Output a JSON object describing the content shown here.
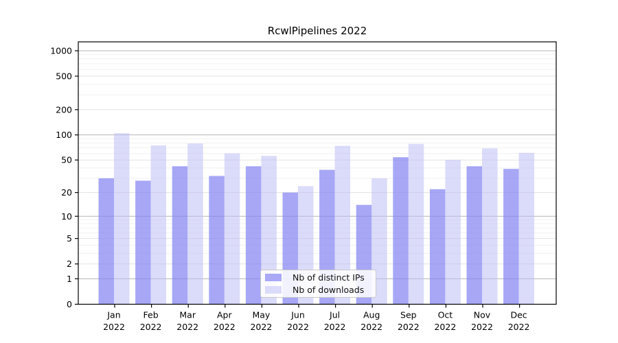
{
  "chart_data": {
    "type": "bar",
    "title": "RcwlPipelines 2022",
    "categories": [
      "Jan",
      "Feb",
      "Mar",
      "Apr",
      "May",
      "Jun",
      "Jul",
      "Aug",
      "Sep",
      "Oct",
      "Nov",
      "Dec"
    ],
    "x_year": "2022",
    "series": [
      {
        "name": "Nb of distinct IPs",
        "values": [
          30,
          28,
          42,
          32,
          42,
          20,
          38,
          14,
          54,
          22,
          42,
          39
        ],
        "color": "#8282f2",
        "opacity": 0.7,
        "legend_color": "#a9a9f7"
      },
      {
        "name": "Nb of downloads",
        "values": [
          105,
          75,
          79,
          60,
          56,
          24,
          74,
          30,
          78,
          50,
          69,
          61
        ],
        "color": "#bebef5",
        "opacity": 0.55,
        "legend_color": "#dbdbfa"
      }
    ],
    "y_ticks": [
      0,
      1,
      2,
      5,
      10,
      20,
      50,
      100,
      200,
      500,
      1000
    ],
    "y_scale": "log1p",
    "ylim": [
      0,
      1280
    ],
    "grid": true,
    "legend_position": "lower center inside plot",
    "colors": {
      "grid_major": "#b4b4b4",
      "grid_mid": "#e2e2e2",
      "grid_minor": "#f1f1f1",
      "axis": "#000000",
      "background": "#ffffff"
    }
  }
}
